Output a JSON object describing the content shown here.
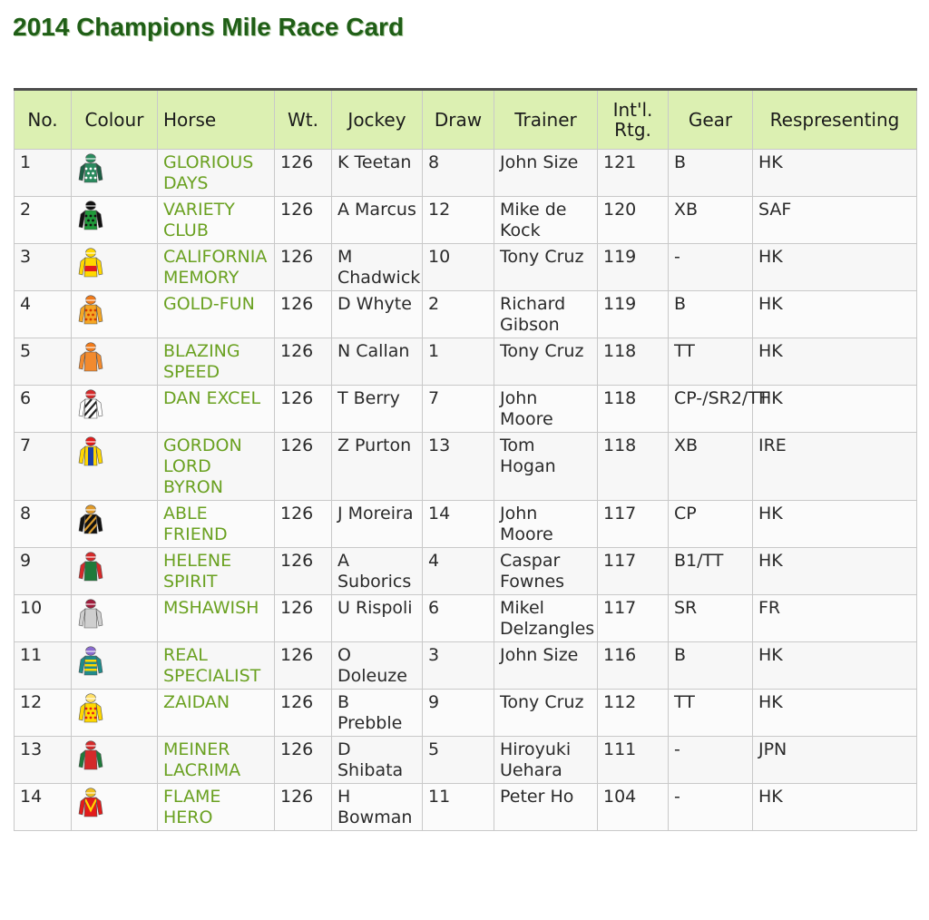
{
  "page": {
    "title": "2014 Champions Mile Race Card"
  },
  "table": {
    "headers": [
      "No.",
      "Colour",
      "Horse",
      "Wt.",
      "Jockey",
      "Draw",
      "Trainer",
      "Int'l. Rtg.",
      "Gear",
      "Respresenting"
    ],
    "rows": [
      {
        "no": "1",
        "horse": "GLORIOUS DAYS",
        "wt": "126",
        "jockey": "K Teetan",
        "draw": "8",
        "trainer": "John Size",
        "rtg": "121",
        "gear": "B",
        "rep": "HK",
        "silk": {
          "cap": "#2a8a5e",
          "body": "#2a8a5e",
          "sleeves": "#1d5e44",
          "pattern": "dots",
          "pat": "#ffffff"
        }
      },
      {
        "no": "2",
        "horse": "VARIETY CLUB",
        "wt": "126",
        "jockey": "A Marcus",
        "draw": "12",
        "trainer": "Mike de Kock",
        "rtg": "120",
        "gear": "XB",
        "rep": "SAF",
        "silk": {
          "cap": "#111111",
          "body": "#1f9a3a",
          "sleeves": "#111111",
          "pattern": "dots",
          "pat": "#111111"
        }
      },
      {
        "no": "3",
        "horse": "CALIFORNIA MEMORY",
        "wt": "126",
        "jockey": "M Chadwick",
        "draw": "10",
        "trainer": "Tony Cruz",
        "rtg": "119",
        "gear": "-",
        "rep": "HK",
        "silk": {
          "cap": "#ffd800",
          "body": "#ffd800",
          "sleeves": "#ffd800",
          "pattern": "band",
          "pat": "#e21b1b"
        }
      },
      {
        "no": "4",
        "horse": "GOLD-FUN",
        "wt": "126",
        "jockey": "D Whyte",
        "draw": "2",
        "trainer": "Richard Gibson",
        "rtg": "119",
        "gear": "B",
        "rep": "HK",
        "silk": {
          "cap": "#f07a1a",
          "body": "#f5a623",
          "sleeves": "#f5a623",
          "pattern": "dots",
          "pat": "#d43a00"
        }
      },
      {
        "no": "5",
        "horse": "BLAZING SPEED",
        "wt": "126",
        "jockey": "N Callan",
        "draw": "1",
        "trainer": "Tony Cruz",
        "rtg": "118",
        "gear": "TT",
        "rep": "HK",
        "silk": {
          "cap": "#f07a1a",
          "body": "#f28a2e",
          "sleeves": "#f28a2e",
          "pattern": "plain",
          "pat": "#f28a2e"
        }
      },
      {
        "no": "6",
        "horse": "DAN EXCEL",
        "wt": "126",
        "jockey": "T Berry",
        "draw": "7",
        "trainer": "John Moore",
        "rtg": "118",
        "gear": "CP-/SR2/TT",
        "rep": "HK",
        "silk": {
          "cap": "#d42a2a",
          "body": "#ffffff",
          "sleeves": "#ffffff",
          "pattern": "stripes",
          "pat": "#222222"
        }
      },
      {
        "no": "7",
        "horse": "GORDON LORD BYRON",
        "wt": "126",
        "jockey": "Z Purton",
        "draw": "13",
        "trainer": "Tom Hogan",
        "rtg": "118",
        "gear": "XB",
        "rep": "IRE",
        "silk": {
          "cap": "#e21b1b",
          "body": "#ffd800",
          "sleeves": "#ffd800",
          "pattern": "vband",
          "pat": "#1b3fa8"
        }
      },
      {
        "no": "8",
        "horse": "ABLE FRIEND",
        "wt": "126",
        "jockey": "J Moreira",
        "draw": "14",
        "trainer": "John Moore",
        "rtg": "117",
        "gear": "CP",
        "rep": "HK",
        "silk": {
          "cap": "#e09a2a",
          "body": "#111111",
          "sleeves": "#111111",
          "pattern": "stripes",
          "pat": "#e0a030"
        }
      },
      {
        "no": "9",
        "horse": "HELENE SPIRIT",
        "wt": "126",
        "jockey": "A Suborics",
        "draw": "4",
        "trainer": "Caspar Fownes",
        "rtg": "117",
        "gear": "B1/TT",
        "rep": "HK",
        "silk": {
          "cap": "#d42a2a",
          "body": "#1f7a3a",
          "sleeves": "#d42a2a",
          "pattern": "plain",
          "pat": "#1f7a3a"
        }
      },
      {
        "no": "10",
        "horse": "MSHAWISH",
        "wt": "126",
        "jockey": "U Rispoli",
        "draw": "6",
        "trainer": "Mikel Delzangles",
        "rtg": "117",
        "gear": "SR",
        "rep": "FR",
        "silk": {
          "cap": "#a01e3c",
          "body": "#cfcfcf",
          "sleeves": "#cfcfcf",
          "pattern": "plain",
          "pat": "#cfcfcf"
        }
      },
      {
        "no": "11",
        "horse": "REAL SPECIALIST",
        "wt": "126",
        "jockey": "O Doleuze",
        "draw": "3",
        "trainer": "John Size",
        "rtg": "116",
        "gear": "B",
        "rep": "HK",
        "silk": {
          "cap": "#8a6ad0",
          "body": "#1f8a8a",
          "sleeves": "#1f8a8a",
          "pattern": "hoops",
          "pat": "#ffd800"
        }
      },
      {
        "no": "12",
        "horse": "ZAIDAN",
        "wt": "126",
        "jockey": "B Prebble",
        "draw": "9",
        "trainer": "Tony Cruz",
        "rtg": "112",
        "gear": "TT",
        "rep": "HK",
        "silk": {
          "cap": "#ffe066",
          "body": "#ffd800",
          "sleeves": "#ffd800",
          "pattern": "dots",
          "pat": "#e21b1b"
        }
      },
      {
        "no": "13",
        "horse": "MEINER LACRIMA",
        "wt": "126",
        "jockey": "D Shibata",
        "draw": "5",
        "trainer": "Hiroyuki Uehara",
        "rtg": "111",
        "gear": "-",
        "rep": "JPN",
        "silk": {
          "cap": "#d42a2a",
          "body": "#d42a2a",
          "sleeves": "#1f7a3a",
          "pattern": "plain",
          "pat": "#d42a2a"
        }
      },
      {
        "no": "14",
        "horse": "FLAME HERO",
        "wt": "126",
        "jockey": "H Bowman",
        "draw": "11",
        "trainer": "Peter Ho",
        "rtg": "104",
        "gear": "-",
        "rep": "HK",
        "silk": {
          "cap": "#f0c020",
          "body": "#e21b1b",
          "sleeves": "#e21b1b",
          "pattern": "chevron",
          "pat": "#ffd800"
        }
      }
    ]
  }
}
